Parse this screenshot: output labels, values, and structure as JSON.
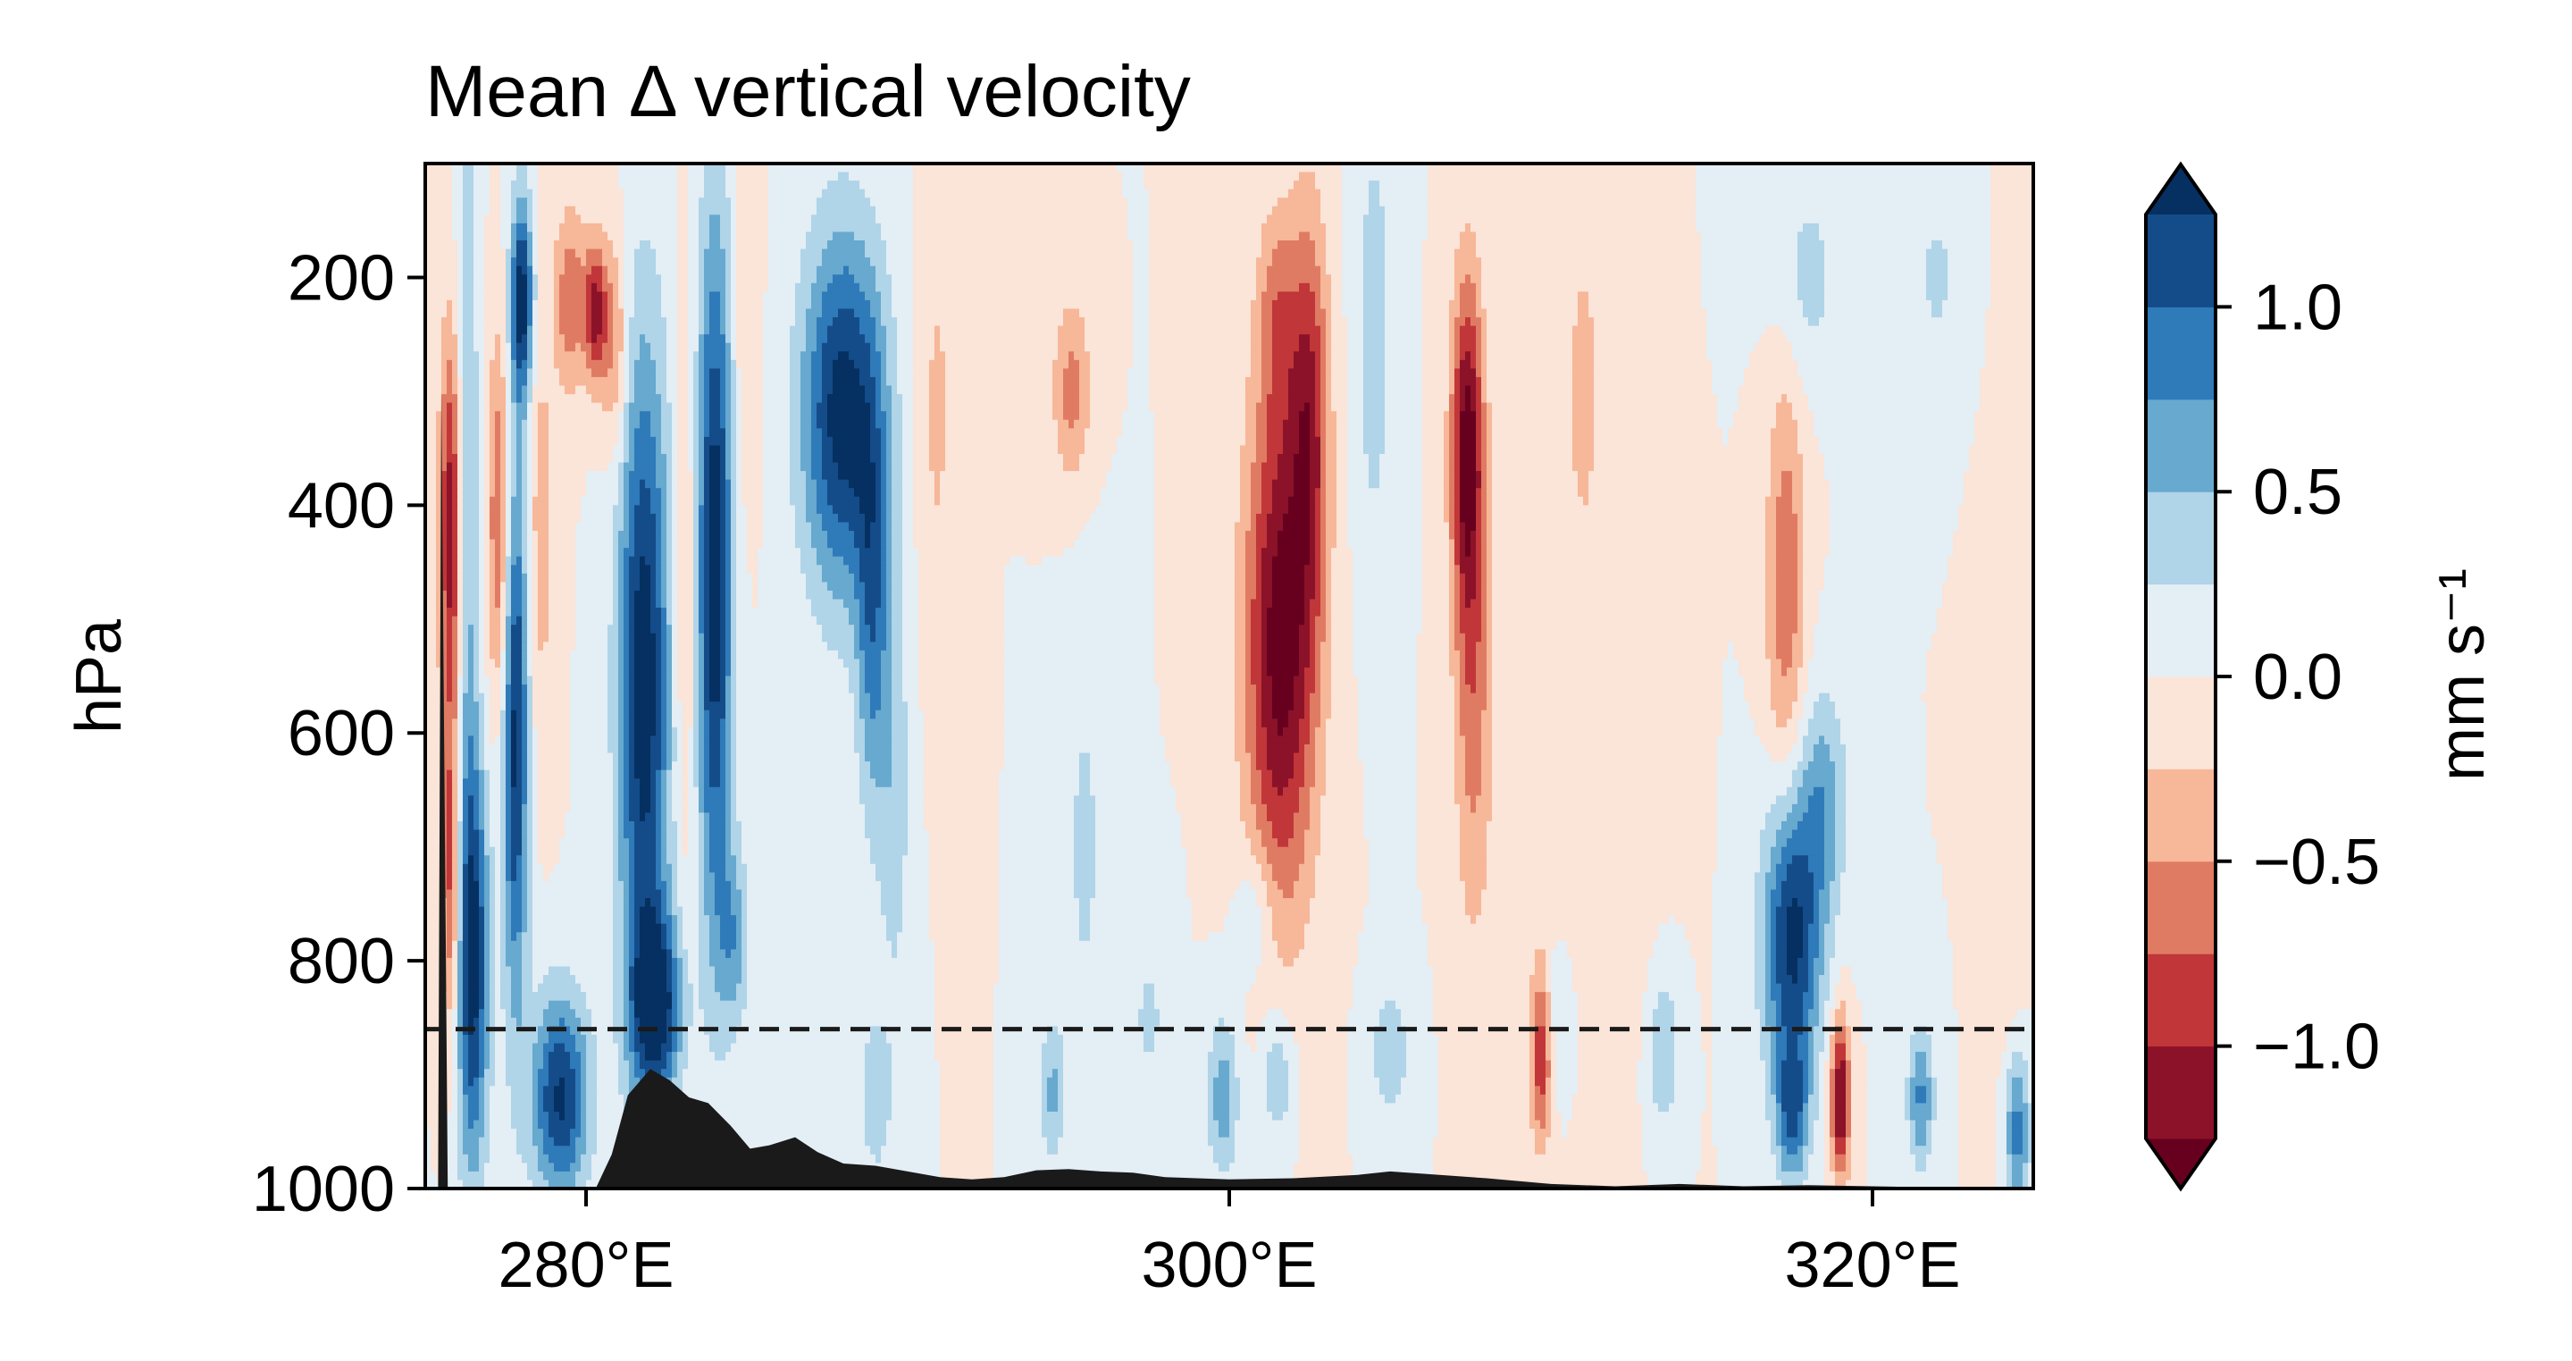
{
  "chart_data": {
    "type": "heatmap",
    "title": "Mean Δ vertical velocity",
    "xlabel": "",
    "ylabel": "hPa",
    "xlim": [
      275,
      325
    ],
    "ylim": [
      1000,
      100
    ],
    "xticks": [
      {
        "value": 280,
        "label": "280°E"
      },
      {
        "value": 300,
        "label": "300°E"
      },
      {
        "value": 320,
        "label": "320°E"
      }
    ],
    "yticks": [
      {
        "value": 200,
        "label": "200"
      },
      {
        "value": 400,
        "label": "400"
      },
      {
        "value": 600,
        "label": "600"
      },
      {
        "value": 800,
        "label": "800"
      },
      {
        "value": 1000,
        "label": "1000"
      }
    ],
    "colorbar": {
      "label": "mm s⁻¹",
      "levels": [
        -1.25,
        -1.0,
        -0.75,
        -0.5,
        -0.25,
        0.0,
        0.25,
        0.5,
        0.75,
        1.0,
        1.25
      ],
      "extend": "both",
      "ticks": [
        {
          "value": -1.0,
          "label": "−1.0"
        },
        {
          "value": -0.5,
          "label": "−0.5"
        },
        {
          "value": 0.0,
          "label": "0.0"
        },
        {
          "value": 0.5,
          "label": "0.5"
        },
        {
          "value": 1.0,
          "label": "1.0"
        }
      ],
      "colors": [
        "#67001f",
        "#8b1228",
        "#c13639",
        "#e07b63",
        "#f7b799",
        "#fbe4d8",
        "#e4eef5",
        "#b0d4e8",
        "#67a9cf",
        "#2f7ab9",
        "#144c89",
        "#053061"
      ]
    },
    "reference_line": {
      "pressure": 860,
      "style": "dashed"
    },
    "terrain": [
      {
        "lon": 275.0,
        "p": 1000
      },
      {
        "lon": 275.4,
        "p": 1000
      },
      {
        "lon": 275.5,
        "p": 300
      },
      {
        "lon": 275.7,
        "p": 1000
      },
      {
        "lon": 280.3,
        "p": 1000
      },
      {
        "lon": 280.8,
        "p": 970
      },
      {
        "lon": 281.3,
        "p": 918
      },
      {
        "lon": 282.0,
        "p": 895
      },
      {
        "lon": 282.6,
        "p": 905
      },
      {
        "lon": 283.2,
        "p": 920
      },
      {
        "lon": 283.8,
        "p": 925
      },
      {
        "lon": 284.5,
        "p": 945
      },
      {
        "lon": 285.1,
        "p": 965
      },
      {
        "lon": 285.7,
        "p": 962
      },
      {
        "lon": 286.5,
        "p": 955
      },
      {
        "lon": 287.2,
        "p": 968
      },
      {
        "lon": 288.0,
        "p": 978
      },
      {
        "lon": 289.0,
        "p": 980
      },
      {
        "lon": 290.0,
        "p": 985
      },
      {
        "lon": 291.0,
        "p": 990
      },
      {
        "lon": 292.0,
        "p": 992
      },
      {
        "lon": 293.0,
        "p": 990
      },
      {
        "lon": 294.0,
        "p": 984
      },
      {
        "lon": 295.0,
        "p": 983
      },
      {
        "lon": 296.0,
        "p": 985
      },
      {
        "lon": 297.0,
        "p": 986
      },
      {
        "lon": 298.0,
        "p": 990
      },
      {
        "lon": 300.0,
        "p": 992
      },
      {
        "lon": 302.0,
        "p": 991
      },
      {
        "lon": 304.0,
        "p": 988
      },
      {
        "lon": 305.0,
        "p": 985
      },
      {
        "lon": 306.0,
        "p": 987
      },
      {
        "lon": 308.0,
        "p": 991
      },
      {
        "lon": 310.0,
        "p": 996
      },
      {
        "lon": 312.0,
        "p": 998
      },
      {
        "lon": 314.0,
        "p": 996
      },
      {
        "lon": 316.0,
        "p": 998
      },
      {
        "lon": 318.0,
        "p": 997
      },
      {
        "lon": 320.0,
        "p": 998
      },
      {
        "lon": 322.0,
        "p": 999
      },
      {
        "lon": 325.0,
        "p": 1000
      }
    ],
    "anomaly_cores": [
      {
        "lon": 275.8,
        "p": 420,
        "value": -1.2,
        "dlon": 0.35,
        "dp": 170
      },
      {
        "lon": 275.8,
        "p": 720,
        "value": -0.9,
        "dlon": 0.3,
        "dp": 140
      },
      {
        "lon": 276.3,
        "p": 400,
        "value": 0.55,
        "dlon": 0.35,
        "dp": 420
      },
      {
        "lon": 276.5,
        "p": 800,
        "value": 1.3,
        "dlon": 0.5,
        "dp": 180
      },
      {
        "lon": 277.3,
        "p": 420,
        "value": -0.8,
        "dlon": 0.35,
        "dp": 170
      },
      {
        "lon": 277.8,
        "p": 600,
        "value": 1.35,
        "dlon": 0.4,
        "dp": 240
      },
      {
        "lon": 278.0,
        "p": 220,
        "value": 1.4,
        "dlon": 0.35,
        "dp": 90
      },
      {
        "lon": 278.6,
        "p": 420,
        "value": -0.4,
        "dlon": 0.4,
        "dp": 180
      },
      {
        "lon": 279.2,
        "p": 920,
        "value": 1.3,
        "dlon": 0.9,
        "dp": 90
      },
      {
        "lon": 279.5,
        "p": 220,
        "value": -0.7,
        "dlon": 0.5,
        "dp": 80
      },
      {
        "lon": 280.3,
        "p": 230,
        "value": -1.1,
        "dlon": 0.35,
        "dp": 60
      },
      {
        "lon": 280.9,
        "p": 260,
        "value": -0.6,
        "dlon": 0.4,
        "dp": 100
      },
      {
        "lon": 281.8,
        "p": 560,
        "value": 1.45,
        "dlon": 0.8,
        "dp": 300
      },
      {
        "lon": 282.2,
        "p": 840,
        "value": 1.3,
        "dlon": 0.8,
        "dp": 80
      },
      {
        "lon": 283.1,
        "p": 480,
        "value": -0.35,
        "dlon": 0.35,
        "dp": 260
      },
      {
        "lon": 284.0,
        "p": 460,
        "value": 1.45,
        "dlon": 0.55,
        "dp": 310
      },
      {
        "lon": 284.6,
        "p": 780,
        "value": 0.6,
        "dlon": 0.5,
        "dp": 80
      },
      {
        "lon": 285.0,
        "p": 250,
        "value": -0.25,
        "dlon": 0.4,
        "dp": 150
      },
      {
        "lon": 288.0,
        "p": 320,
        "value": 1.4,
        "dlon": 1.3,
        "dp": 160
      },
      {
        "lon": 288.9,
        "p": 500,
        "value": 0.8,
        "dlon": 0.5,
        "dp": 180
      },
      {
        "lon": 289.6,
        "p": 650,
        "value": 0.4,
        "dlon": 0.5,
        "dp": 200
      },
      {
        "lon": 289.0,
        "p": 920,
        "value": 0.45,
        "dlon": 0.5,
        "dp": 70
      },
      {
        "lon": 290.9,
        "p": 320,
        "value": -0.3,
        "dlon": 0.6,
        "dp": 200
      },
      {
        "lon": 295.1,
        "p": 300,
        "value": -0.6,
        "dlon": 0.6,
        "dp": 80
      },
      {
        "lon": 295.5,
        "p": 700,
        "value": 0.3,
        "dlon": 0.7,
        "dp": 200
      },
      {
        "lon": 294.5,
        "p": 915,
        "value": 0.55,
        "dlon": 0.4,
        "dp": 60
      },
      {
        "lon": 299.8,
        "p": 920,
        "value": 0.65,
        "dlon": 0.5,
        "dp": 70
      },
      {
        "lon": 297.5,
        "p": 850,
        "value": 0.3,
        "dlon": 0.6,
        "dp": 80
      },
      {
        "lon": 301.6,
        "p": 520,
        "value": -1.4,
        "dlon": 1.1,
        "dp": 230
      },
      {
        "lon": 302.5,
        "p": 320,
        "value": -0.9,
        "dlon": 0.6,
        "dp": 180
      },
      {
        "lon": 301.5,
        "p": 230,
        "value": -0.5,
        "dlon": 0.6,
        "dp": 90
      },
      {
        "lon": 300.8,
        "p": 760,
        "value": 0.35,
        "dlon": 0.6,
        "dp": 60
      },
      {
        "lon": 301.5,
        "p": 900,
        "value": 0.5,
        "dlon": 0.5,
        "dp": 60
      },
      {
        "lon": 304.5,
        "p": 250,
        "value": 0.4,
        "dlon": 0.6,
        "dp": 200
      },
      {
        "lon": 305.0,
        "p": 880,
        "value": 0.45,
        "dlon": 0.6,
        "dp": 60
      },
      {
        "lon": 307.4,
        "p": 350,
        "value": -1.35,
        "dlon": 0.5,
        "dp": 150
      },
      {
        "lon": 307.6,
        "p": 580,
        "value": -0.6,
        "dlon": 0.6,
        "dp": 200
      },
      {
        "lon": 309.7,
        "p": 880,
        "value": -1.0,
        "dlon": 0.35,
        "dp": 80
      },
      {
        "lon": 310.2,
        "p": 850,
        "value": 0.35,
        "dlon": 0.6,
        "dp": 70
      },
      {
        "lon": 311.5,
        "p": 700,
        "value": -0.25,
        "dlon": 1.5,
        "dp": 200
      },
      {
        "lon": 311.0,
        "p": 300,
        "value": -0.35,
        "dlon": 0.6,
        "dp": 150
      },
      {
        "lon": 313.5,
        "p": 880,
        "value": 0.5,
        "dlon": 0.5,
        "dp": 70
      },
      {
        "lon": 317.3,
        "p": 470,
        "value": -0.7,
        "dlon": 0.6,
        "dp": 180
      },
      {
        "lon": 317.5,
        "p": 780,
        "value": 1.35,
        "dlon": 0.9,
        "dp": 130
      },
      {
        "lon": 318.5,
        "p": 660,
        "value": 0.6,
        "dlon": 0.7,
        "dp": 100
      },
      {
        "lon": 317.5,
        "p": 935,
        "value": 0.9,
        "dlon": 0.5,
        "dp": 60
      },
      {
        "lon": 319.0,
        "p": 920,
        "value": -1.35,
        "dlon": 0.3,
        "dp": 70
      },
      {
        "lon": 318.0,
        "p": 200,
        "value": 0.35,
        "dlon": 1.0,
        "dp": 90
      },
      {
        "lon": 321.5,
        "p": 920,
        "value": 0.8,
        "dlon": 0.4,
        "dp": 60
      },
      {
        "lon": 322.0,
        "p": 200,
        "value": 0.3,
        "dlon": 0.8,
        "dp": 80
      },
      {
        "lon": 324.5,
        "p": 950,
        "value": 0.9,
        "dlon": 0.4,
        "dp": 70
      },
      {
        "lon": 324.2,
        "p": 650,
        "value": -0.25,
        "dlon": 0.6,
        "dp": 250
      }
    ]
  }
}
